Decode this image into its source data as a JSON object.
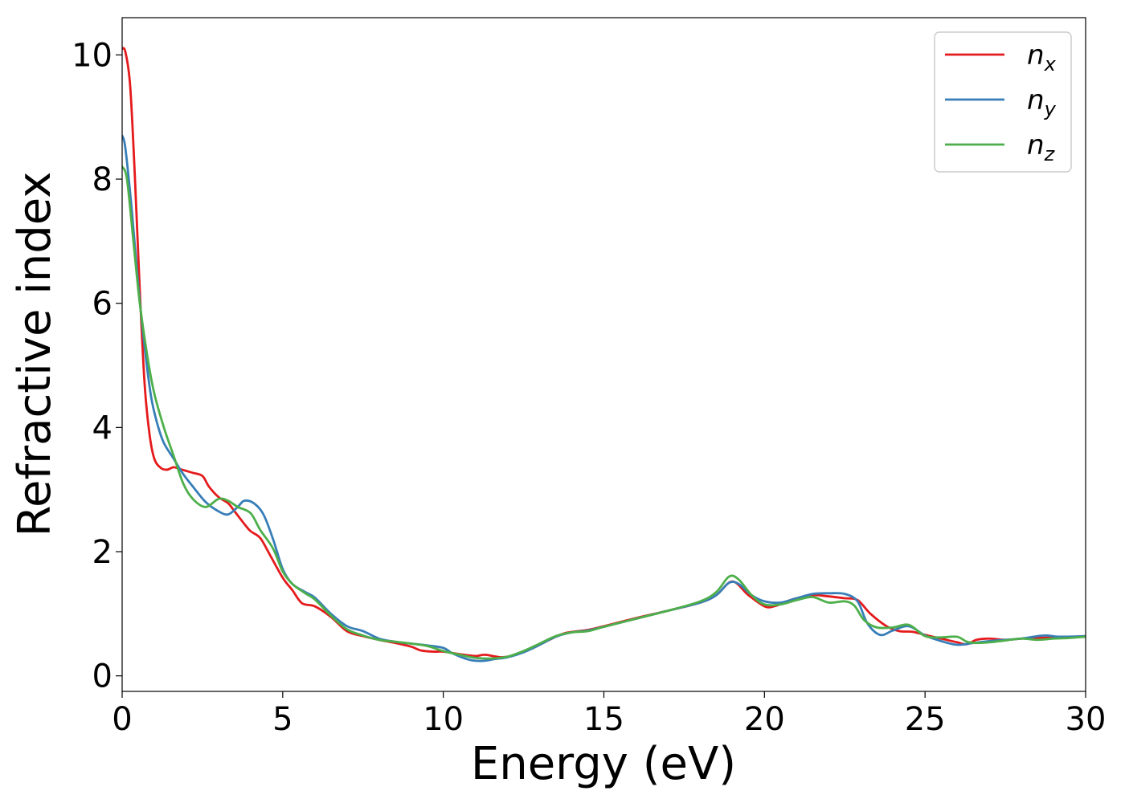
{
  "chart_data": {
    "type": "line",
    "title": "",
    "xlabel": "Energy (eV)",
    "ylabel": "Refractive index",
    "xlim": [
      0,
      30
    ],
    "ylim": [
      -0.25,
      10.6
    ],
    "xticks": [
      0,
      5,
      10,
      15,
      20,
      25,
      30
    ],
    "yticks": [
      0,
      2,
      4,
      6,
      8,
      10
    ],
    "grid": false,
    "legend": "top-right",
    "series": [
      {
        "name": "n_x",
        "label_main": "n",
        "label_sub": "x",
        "color": "#e41a1c",
        "points": [
          [
            0,
            10.1
          ],
          [
            0.1,
            10.05
          ],
          [
            0.25,
            9.5
          ],
          [
            0.4,
            8.0
          ],
          [
            0.55,
            6.2
          ],
          [
            0.7,
            4.7
          ],
          [
            0.85,
            3.9
          ],
          [
            1.0,
            3.5
          ],
          [
            1.2,
            3.35
          ],
          [
            1.4,
            3.32
          ],
          [
            1.6,
            3.36
          ],
          [
            1.8,
            3.33
          ],
          [
            2.0,
            3.3
          ],
          [
            2.2,
            3.27
          ],
          [
            2.5,
            3.22
          ],
          [
            2.7,
            3.05
          ],
          [
            3.0,
            2.88
          ],
          [
            3.3,
            2.78
          ],
          [
            3.5,
            2.65
          ],
          [
            3.8,
            2.45
          ],
          [
            4.0,
            2.33
          ],
          [
            4.3,
            2.22
          ],
          [
            4.6,
            1.95
          ],
          [
            5.0,
            1.58
          ],
          [
            5.3,
            1.38
          ],
          [
            5.6,
            1.17
          ],
          [
            6.0,
            1.12
          ],
          [
            6.5,
            0.95
          ],
          [
            7.0,
            0.72
          ],
          [
            7.5,
            0.64
          ],
          [
            8.0,
            0.58
          ],
          [
            8.5,
            0.53
          ],
          [
            9.0,
            0.47
          ],
          [
            9.3,
            0.41
          ],
          [
            9.7,
            0.39
          ],
          [
            10.0,
            0.39
          ],
          [
            10.5,
            0.35
          ],
          [
            11.0,
            0.32
          ],
          [
            11.3,
            0.34
          ],
          [
            11.8,
            0.3
          ],
          [
            12.2,
            0.33
          ],
          [
            12.8,
            0.45
          ],
          [
            13.3,
            0.58
          ],
          [
            13.8,
            0.69
          ],
          [
            14.5,
            0.74
          ],
          [
            15.0,
            0.8
          ],
          [
            16.0,
            0.93
          ],
          [
            17.0,
            1.05
          ],
          [
            18.0,
            1.18
          ],
          [
            18.5,
            1.3
          ],
          [
            19.0,
            1.52
          ],
          [
            19.5,
            1.3
          ],
          [
            20.0,
            1.12
          ],
          [
            20.3,
            1.12
          ],
          [
            20.7,
            1.2
          ],
          [
            21.0,
            1.25
          ],
          [
            21.5,
            1.3
          ],
          [
            22.0,
            1.28
          ],
          [
            22.5,
            1.25
          ],
          [
            22.9,
            1.22
          ],
          [
            23.3,
            1.0
          ],
          [
            23.8,
            0.8
          ],
          [
            24.2,
            0.72
          ],
          [
            24.6,
            0.71
          ],
          [
            25.0,
            0.66
          ],
          [
            25.5,
            0.6
          ],
          [
            26.0,
            0.54
          ],
          [
            26.3,
            0.51
          ],
          [
            26.6,
            0.58
          ],
          [
            27.0,
            0.6
          ],
          [
            27.5,
            0.58
          ],
          [
            28.0,
            0.6
          ],
          [
            28.5,
            0.61
          ],
          [
            29.0,
            0.62
          ],
          [
            29.5,
            0.62
          ],
          [
            30.0,
            0.64
          ]
        ]
      },
      {
        "name": "n_y",
        "label_main": "n",
        "label_sub": "y",
        "color": "#377eb8",
        "points": [
          [
            0,
            8.7
          ],
          [
            0.1,
            8.5
          ],
          [
            0.3,
            7.5
          ],
          [
            0.5,
            6.3
          ],
          [
            0.7,
            5.3
          ],
          [
            0.9,
            4.5
          ],
          [
            1.1,
            4.05
          ],
          [
            1.3,
            3.75
          ],
          [
            1.6,
            3.5
          ],
          [
            1.9,
            3.25
          ],
          [
            2.2,
            3.05
          ],
          [
            2.6,
            2.8
          ],
          [
            3.0,
            2.65
          ],
          [
            3.3,
            2.6
          ],
          [
            3.6,
            2.72
          ],
          [
            3.8,
            2.82
          ],
          [
            4.1,
            2.78
          ],
          [
            4.4,
            2.6
          ],
          [
            4.7,
            2.2
          ],
          [
            5.0,
            1.72
          ],
          [
            5.3,
            1.48
          ],
          [
            5.7,
            1.35
          ],
          [
            6.0,
            1.26
          ],
          [
            6.5,
            1.0
          ],
          [
            7.0,
            0.8
          ],
          [
            7.5,
            0.72
          ],
          [
            8.0,
            0.6
          ],
          [
            8.5,
            0.55
          ],
          [
            9.0,
            0.52
          ],
          [
            9.5,
            0.49
          ],
          [
            10.0,
            0.45
          ],
          [
            10.3,
            0.36
          ],
          [
            10.8,
            0.26
          ],
          [
            11.2,
            0.24
          ],
          [
            11.6,
            0.27
          ],
          [
            12.0,
            0.3
          ],
          [
            12.5,
            0.38
          ],
          [
            13.0,
            0.5
          ],
          [
            13.5,
            0.63
          ],
          [
            14.0,
            0.7
          ],
          [
            14.5,
            0.73
          ],
          [
            15.0,
            0.79
          ],
          [
            16.0,
            0.92
          ],
          [
            17.0,
            1.05
          ],
          [
            18.0,
            1.18
          ],
          [
            18.5,
            1.3
          ],
          [
            18.9,
            1.5
          ],
          [
            19.2,
            1.48
          ],
          [
            19.6,
            1.3
          ],
          [
            20.0,
            1.2
          ],
          [
            20.5,
            1.18
          ],
          [
            21.0,
            1.25
          ],
          [
            21.5,
            1.32
          ],
          [
            22.0,
            1.33
          ],
          [
            22.5,
            1.32
          ],
          [
            22.9,
            1.2
          ],
          [
            23.2,
            0.85
          ],
          [
            23.6,
            0.66
          ],
          [
            24.0,
            0.73
          ],
          [
            24.5,
            0.8
          ],
          [
            25.0,
            0.65
          ],
          [
            25.5,
            0.56
          ],
          [
            26.0,
            0.5
          ],
          [
            26.5,
            0.53
          ],
          [
            27.0,
            0.56
          ],
          [
            27.5,
            0.58
          ],
          [
            28.0,
            0.6
          ],
          [
            28.7,
            0.65
          ],
          [
            29.2,
            0.63
          ],
          [
            30.0,
            0.64
          ]
        ]
      },
      {
        "name": "n_z",
        "label_main": "n",
        "label_sub": "z",
        "color": "#4daf4a",
        "points": [
          [
            0,
            8.2
          ],
          [
            0.15,
            8.0
          ],
          [
            0.35,
            7.0
          ],
          [
            0.55,
            6.0
          ],
          [
            0.8,
            5.1
          ],
          [
            1.0,
            4.55
          ],
          [
            1.3,
            4.0
          ],
          [
            1.6,
            3.55
          ],
          [
            1.9,
            3.1
          ],
          [
            2.2,
            2.85
          ],
          [
            2.6,
            2.72
          ],
          [
            3.0,
            2.85
          ],
          [
            3.3,
            2.82
          ],
          [
            3.6,
            2.72
          ],
          [
            4.0,
            2.62
          ],
          [
            4.3,
            2.35
          ],
          [
            4.7,
            2.05
          ],
          [
            5.0,
            1.68
          ],
          [
            5.3,
            1.48
          ],
          [
            5.7,
            1.33
          ],
          [
            6.0,
            1.23
          ],
          [
            6.5,
            0.97
          ],
          [
            7.0,
            0.75
          ],
          [
            7.5,
            0.65
          ],
          [
            8.0,
            0.58
          ],
          [
            8.5,
            0.55
          ],
          [
            9.0,
            0.52
          ],
          [
            9.5,
            0.48
          ],
          [
            10.0,
            0.4
          ],
          [
            10.5,
            0.34
          ],
          [
            11.0,
            0.29
          ],
          [
            11.5,
            0.28
          ],
          [
            12.0,
            0.31
          ],
          [
            12.5,
            0.4
          ],
          [
            13.0,
            0.52
          ],
          [
            13.5,
            0.64
          ],
          [
            14.0,
            0.7
          ],
          [
            14.5,
            0.72
          ],
          [
            15.0,
            0.79
          ],
          [
            16.0,
            0.92
          ],
          [
            17.0,
            1.05
          ],
          [
            18.0,
            1.2
          ],
          [
            18.5,
            1.35
          ],
          [
            18.9,
            1.6
          ],
          [
            19.2,
            1.55
          ],
          [
            19.6,
            1.3
          ],
          [
            20.0,
            1.15
          ],
          [
            20.5,
            1.15
          ],
          [
            21.0,
            1.22
          ],
          [
            21.5,
            1.27
          ],
          [
            22.0,
            1.18
          ],
          [
            22.5,
            1.2
          ],
          [
            22.8,
            1.13
          ],
          [
            23.1,
            0.9
          ],
          [
            23.5,
            0.78
          ],
          [
            24.0,
            0.78
          ],
          [
            24.5,
            0.82
          ],
          [
            25.0,
            0.64
          ],
          [
            25.5,
            0.62
          ],
          [
            26.0,
            0.63
          ],
          [
            26.3,
            0.55
          ],
          [
            26.6,
            0.53
          ],
          [
            27.0,
            0.54
          ],
          [
            27.5,
            0.57
          ],
          [
            28.0,
            0.6
          ],
          [
            28.5,
            0.58
          ],
          [
            29.0,
            0.6
          ],
          [
            29.5,
            0.61
          ],
          [
            30.0,
            0.63
          ]
        ]
      }
    ]
  }
}
